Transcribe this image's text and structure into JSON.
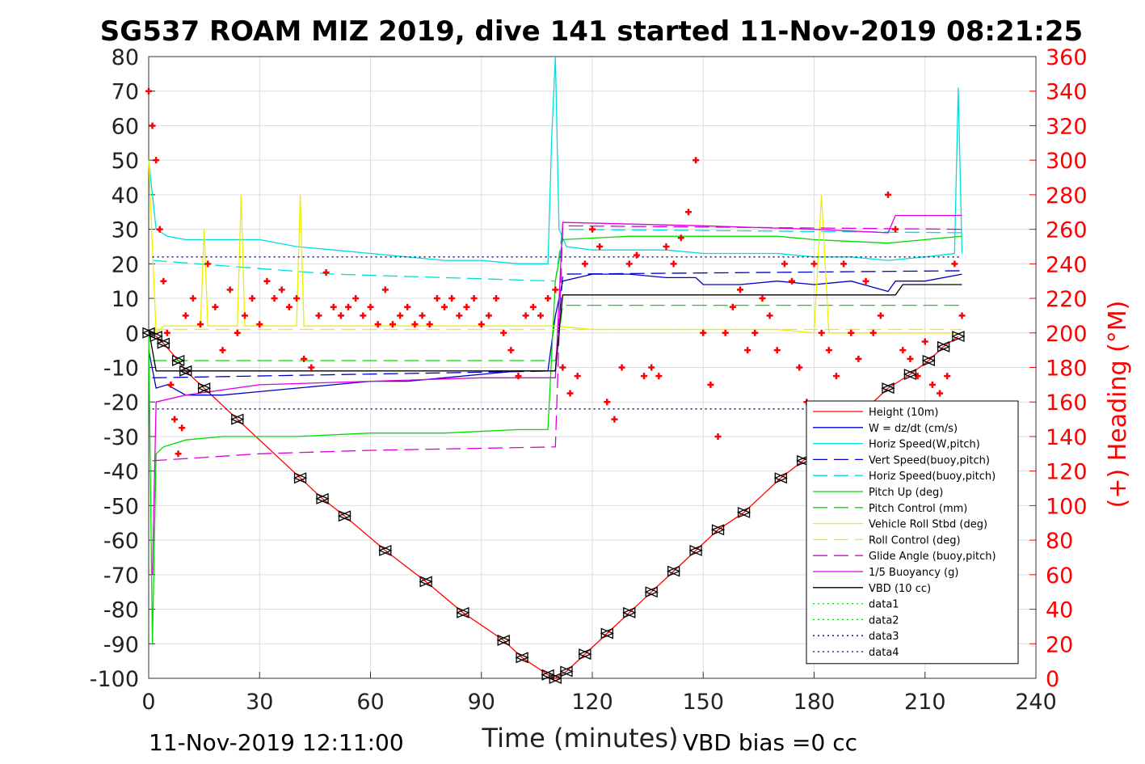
{
  "chart_data": {
    "type": "line",
    "title": "SG537 ROAM MIZ 2019, dive 141 started 11-Nov-2019 08:21:25",
    "xlabel": "Time (minutes)",
    "ylabel": "",
    "y2label": "(+) Heading (°M)",
    "footer_left": "11-Nov-2019 12:11:00",
    "footer_right": "VBD bias =0 cc",
    "xlim": [
      0,
      240
    ],
    "ylim": [
      -100,
      80
    ],
    "y2lim": [
      0,
      360
    ],
    "x_ticks": [
      0,
      30,
      60,
      90,
      120,
      150,
      180,
      210,
      240
    ],
    "y_ticks": [
      80,
      70,
      60,
      50,
      40,
      30,
      20,
      10,
      0,
      -10,
      -20,
      -30,
      -40,
      -50,
      -60,
      -70,
      -80,
      -90,
      -100
    ],
    "y2_ticks": [
      360,
      340,
      320,
      300,
      280,
      260,
      240,
      220,
      200,
      180,
      160,
      140,
      120,
      100,
      80,
      60,
      40,
      20,
      0
    ],
    "grid": true,
    "legend_position": "bottom-right",
    "series": [
      {
        "name": "Height (10m)",
        "color": "#ff0000",
        "style": "solid",
        "x": [
          0,
          2,
          4,
          8,
          10,
          15,
          24,
          41,
          47,
          53,
          64,
          75,
          85,
          96,
          101,
          108,
          110,
          113,
          118,
          124,
          130,
          136,
          142,
          148,
          154,
          161,
          171,
          177,
          193,
          200,
          206,
          211,
          215,
          219
        ],
        "values": [
          0,
          -1,
          -3,
          -8,
          -11,
          -16,
          -25,
          -42,
          -48,
          -53,
          -63,
          -72,
          -81,
          -89,
          -94,
          -99,
          -100,
          -98,
          -93,
          -87,
          -81,
          -75,
          -69,
          -63,
          -57,
          -52,
          -42,
          -37,
          -23,
          -16,
          -12,
          -8,
          -4,
          -1
        ]
      },
      {
        "name": "W = dz/dt (cm/s)",
        "color": "#0000cc",
        "style": "solid",
        "x": [
          0,
          2,
          5,
          10,
          20,
          30,
          40,
          50,
          60,
          70,
          80,
          90,
          100,
          108,
          110,
          112,
          120,
          130,
          140,
          148,
          150,
          160,
          170,
          180,
          190,
          200,
          202,
          210,
          220
        ],
        "values": [
          -5,
          -16,
          -15,
          -18,
          -18,
          -17,
          -16,
          -15,
          -14,
          -14,
          -13,
          -12,
          -11,
          -11,
          5,
          15,
          17,
          17,
          16,
          16,
          14,
          14,
          15,
          14,
          15,
          12,
          15,
          15,
          17
        ]
      },
      {
        "name": "Horiz Speed(W,pitch)",
        "color": "#00dddd",
        "style": "solid",
        "x": [
          0,
          2,
          5,
          10,
          20,
          30,
          40,
          50,
          60,
          70,
          80,
          90,
          100,
          108,
          109,
          110,
          111,
          113,
          120,
          130,
          140,
          150,
          160,
          170,
          180,
          190,
          200,
          210,
          218,
          219,
          220
        ],
        "values": [
          50,
          30,
          28,
          27,
          27,
          27,
          25,
          24,
          23,
          22,
          21,
          21,
          20,
          20,
          56,
          85,
          30,
          25,
          24,
          24,
          24,
          23,
          23,
          23,
          22,
          22,
          21,
          22,
          23,
          71,
          23
        ]
      },
      {
        "name": "Vert Speed(buoy,pitch)",
        "color": "#0000cc",
        "style": "dashed",
        "x": [
          1,
          110,
          112,
          220
        ],
        "values": [
          -13,
          -11,
          17,
          18
        ]
      },
      {
        "name": "Horiz Speed(buoy,pitch)",
        "color": "#00dddd",
        "style": "dashed",
        "x": [
          1,
          50,
          110,
          112,
          220
        ],
        "values": [
          21,
          17,
          15,
          30,
          29
        ]
      },
      {
        "name": "Pitch Up (deg)",
        "color": "#00dd00",
        "style": "solid",
        "x": [
          0,
          1,
          2,
          4,
          10,
          20,
          40,
          60,
          80,
          100,
          108,
          110,
          112,
          130,
          150,
          170,
          180,
          200,
          210,
          220
        ],
        "values": [
          0,
          -90,
          -35,
          -33,
          -31,
          -30,
          -30,
          -29,
          -29,
          -28,
          -28,
          15,
          27,
          28,
          28,
          28,
          27,
          26,
          27,
          28
        ]
      },
      {
        "name": "Pitch Control (mm)",
        "color": "#00dd00",
        "style": "dashed",
        "x": [
          1,
          110,
          112,
          220
        ],
        "values": [
          -8,
          -8,
          8,
          8
        ]
      },
      {
        "name": "Vehicle Roll Stbd (deg)",
        "color": "#eeee00",
        "style": "solid",
        "x": [
          0,
          1,
          2,
          4,
          10,
          14,
          15,
          16,
          24,
          25,
          26,
          40,
          41,
          42,
          60,
          75,
          85,
          100,
          108,
          110,
          120,
          150,
          170,
          180,
          182,
          184,
          200,
          210,
          220
        ],
        "values": [
          50,
          25,
          0,
          2,
          2,
          2,
          30,
          2,
          2,
          40,
          2,
          2,
          40,
          2,
          2,
          2,
          2,
          2,
          2,
          2,
          1,
          1,
          1,
          0,
          40,
          0,
          0,
          0,
          0
        ]
      },
      {
        "name": "Roll Control (deg)",
        "color": "#eeee00",
        "style": "dashed",
        "x": [
          1,
          220
        ],
        "values": [
          1,
          1
        ]
      },
      {
        "name": "Glide Angle (buoy,pitch)",
        "color": "#dd00dd",
        "style": "dashed",
        "x": [
          1,
          30,
          60,
          110,
          112,
          220
        ],
        "values": [
          -37,
          -35,
          -34,
          -33,
          31,
          30
        ]
      },
      {
        "name": "1/5 Buoyancy (g)",
        "color": "#dd00dd",
        "style": "solid",
        "x": [
          1,
          2,
          10,
          30,
          60,
          90,
          110,
          112,
          150,
          180,
          200,
          202,
          220
        ],
        "values": [
          -70,
          -20,
          -18,
          -15,
          -14,
          -13,
          -13,
          32,
          31,
          30,
          29,
          34,
          34
        ]
      },
      {
        "name": "VBD (10 cc)",
        "color": "#000000",
        "style": "solid",
        "x": [
          0,
          2,
          110,
          112,
          202,
          204,
          220
        ],
        "values": [
          1,
          -11,
          -11,
          11,
          11,
          14,
          14
        ]
      },
      {
        "name": "data1",
        "color": "#00dd00",
        "style": "dotted",
        "x": [],
        "values": []
      },
      {
        "name": "data2",
        "color": "#00dd00",
        "style": "dotted",
        "x": [],
        "values": []
      },
      {
        "name": "data3",
        "color": "#000088",
        "style": "dotted",
        "x": [
          1,
          220
        ],
        "values": [
          22,
          22
        ]
      },
      {
        "name": "data4",
        "color": "#000088",
        "style": "dotted",
        "x": [
          1,
          220
        ],
        "values": [
          -22,
          -22
        ]
      }
    ],
    "heading_series": {
      "color": "#ff0000",
      "marker": "plus",
      "axis": "right",
      "x": [
        0,
        1,
        2,
        3,
        4,
        5,
        6,
        7,
        8,
        9,
        10,
        12,
        14,
        16,
        18,
        20,
        22,
        24,
        26,
        28,
        30,
        32,
        34,
        36,
        38,
        40,
        42,
        44,
        46,
        48,
        50,
        52,
        54,
        56,
        58,
        60,
        62,
        64,
        66,
        68,
        70,
        72,
        74,
        76,
        78,
        80,
        82,
        84,
        86,
        88,
        90,
        92,
        94,
        96,
        98,
        100,
        102,
        104,
        106,
        108,
        110,
        112,
        114,
        116,
        118,
        120,
        122,
        124,
        126,
        128,
        130,
        132,
        134,
        136,
        138,
        140,
        142,
        144,
        146,
        148,
        150,
        152,
        154,
        156,
        158,
        160,
        162,
        164,
        166,
        168,
        170,
        172,
        174,
        176,
        178,
        180,
        182,
        184,
        186,
        188,
        190,
        192,
        194,
        196,
        198,
        200,
        202,
        204,
        206,
        208,
        210,
        212,
        214,
        216,
        218,
        220
      ],
      "values": [
        340,
        320,
        300,
        260,
        230,
        200,
        170,
        150,
        130,
        145,
        210,
        220,
        205,
        240,
        215,
        190,
        225,
        200,
        210,
        220,
        205,
        230,
        220,
        225,
        215,
        220,
        185,
        180,
        210,
        235,
        215,
        210,
        215,
        220,
        210,
        215,
        205,
        225,
        205,
        210,
        215,
        205,
        210,
        205,
        220,
        215,
        220,
        210,
        215,
        220,
        205,
        210,
        220,
        200,
        190,
        175,
        210,
        215,
        210,
        220,
        225,
        180,
        165,
        175,
        240,
        260,
        250,
        160,
        150,
        180,
        240,
        245,
        175,
        180,
        175,
        250,
        240,
        255,
        270,
        300,
        200,
        170,
        140,
        200,
        215,
        225,
        190,
        200,
        220,
        210,
        190,
        240,
        230,
        180,
        160,
        240,
        200,
        190,
        175,
        240,
        200,
        185,
        230,
        200,
        210,
        280,
        260,
        190,
        185,
        175,
        195,
        170,
        165,
        175,
        240,
        210
      ]
    }
  }
}
